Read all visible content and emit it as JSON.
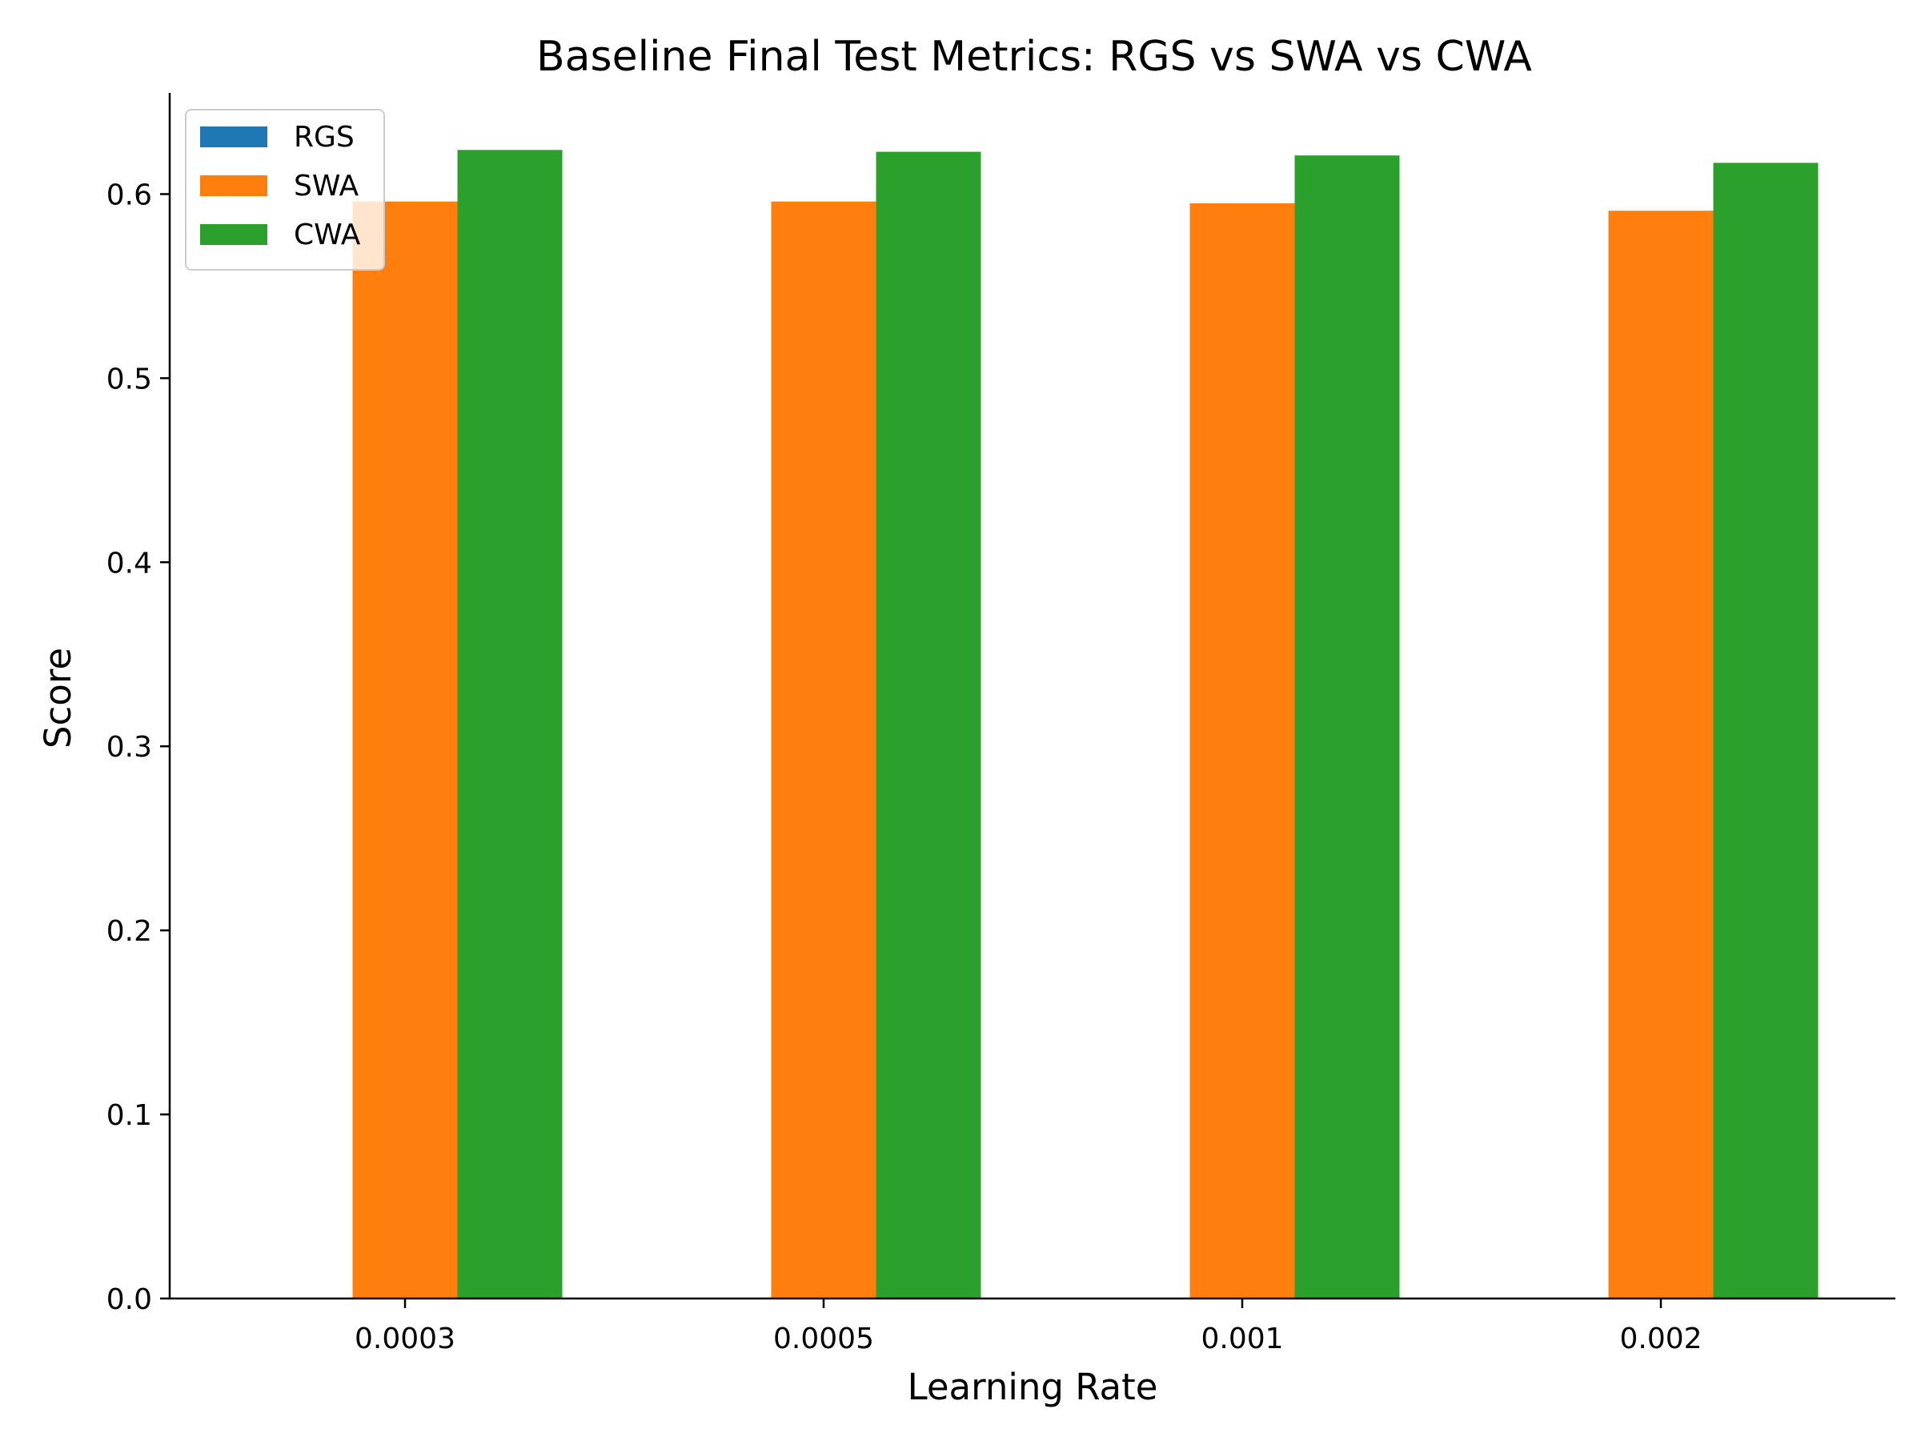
{
  "chart_data": {
    "type": "bar",
    "title": "Baseline Final Test Metrics: RGS vs SWA vs CWA",
    "xlabel": "Learning Rate",
    "ylabel": "Score",
    "categories": [
      "0.0003",
      "0.0005",
      "0.001",
      "0.002"
    ],
    "series": [
      {
        "name": "RGS",
        "color": "#1f77b4",
        "values": [
          0.0,
          0.0,
          0.0,
          0.0
        ]
      },
      {
        "name": "SWA",
        "color": "#ff7f0e",
        "values": [
          0.596,
          0.596,
          0.595,
          0.591
        ]
      },
      {
        "name": "CWA",
        "color": "#2ca02c",
        "values": [
          0.624,
          0.623,
          0.621,
          0.617
        ]
      }
    ],
    "ylim": [
      0,
      0.655
    ],
    "yticks": [
      "0.0",
      "0.1",
      "0.2",
      "0.3",
      "0.4",
      "0.5",
      "0.6"
    ],
    "grid": false,
    "legend_position": "top-left"
  }
}
